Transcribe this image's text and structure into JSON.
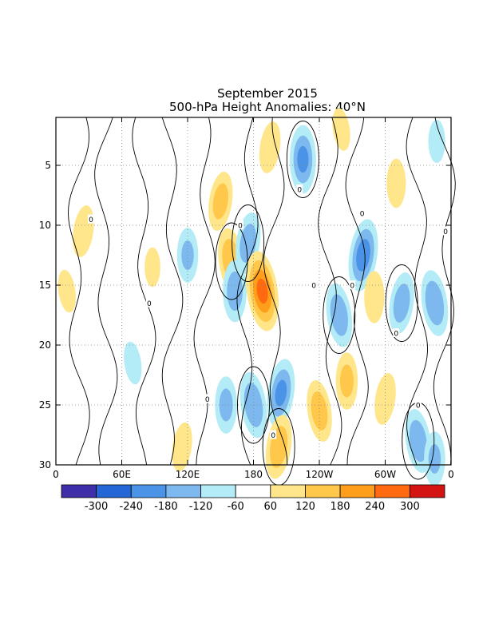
{
  "chart_data": {
    "type": "heatmap",
    "title": "September 2015",
    "subtitle": "500-hPa Height Anomalies: 40°N",
    "x_axis": {
      "range_deg_east": [
        0,
        360
      ],
      "tick_values_deg_east": [
        0,
        60,
        120,
        180,
        240,
        300,
        360
      ],
      "tick_labels": [
        "0",
        "60E",
        "120E",
        "180",
        "120W",
        "60W",
        "0"
      ]
    },
    "y_axis": {
      "range_day": [
        1,
        30
      ],
      "inverted": true,
      "tick_values": [
        5,
        10,
        15,
        20,
        25,
        30
      ],
      "tick_labels": [
        "5",
        "10",
        "15",
        "20",
        "25",
        "30"
      ]
    },
    "grid": "dotted",
    "contour_label": "0",
    "colorbar": {
      "labels": [
        "-300",
        "-240",
        "-180",
        "-120",
        "-60",
        "60",
        "120",
        "180",
        "240",
        "300"
      ],
      "colors": [
        "#3e2ea7",
        "#2566d7",
        "#4a93e6",
        "#7db9ee",
        "#b3ecf6",
        "#ffffff",
        "#ffe68a",
        "#ffc84a",
        "#ff9e1a",
        "#ff6a10",
        "#d41412"
      ]
    },
    "anomaly_centers": [
      {
        "lon": 70,
        "day": 21.5,
        "value": -80
      },
      {
        "lon": 88,
        "day": 13.5,
        "value": 70
      },
      {
        "lon": 25,
        "day": 10.5,
        "value": 110
      },
      {
        "lon": 10,
        "day": 15.5,
        "value": 80
      },
      {
        "lon": 120,
        "day": 12.5,
        "value": -120
      },
      {
        "lon": 150,
        "day": 8,
        "value": 140
      },
      {
        "lon": 160,
        "day": 13,
        "value": 170
      },
      {
        "lon": 163,
        "day": 15.5,
        "value": -150
      },
      {
        "lon": 175,
        "day": 11.5,
        "value": -150
      },
      {
        "lon": 188,
        "day": 15.5,
        "value": 240
      },
      {
        "lon": 225,
        "day": 4.5,
        "value": -180
      },
      {
        "lon": 280,
        "day": 12.5,
        "value": -200
      },
      {
        "lon": 258,
        "day": 17.5,
        "value": -160
      },
      {
        "lon": 290,
        "day": 16,
        "value": 110
      },
      {
        "lon": 315,
        "day": 16.5,
        "value": -150
      },
      {
        "lon": 345,
        "day": 16.5,
        "value": -170
      },
      {
        "lon": 347,
        "day": 3,
        "value": -80
      },
      {
        "lon": 205,
        "day": 24,
        "value": -180
      },
      {
        "lon": 180,
        "day": 25,
        "value": -170
      },
      {
        "lon": 155,
        "day": 25,
        "value": -130
      },
      {
        "lon": 203,
        "day": 28.5,
        "value": 160
      },
      {
        "lon": 240,
        "day": 25.5,
        "value": 150
      },
      {
        "lon": 265,
        "day": 23,
        "value": 130
      },
      {
        "lon": 300,
        "day": 24.5,
        "value": 110
      },
      {
        "lon": 330,
        "day": 28,
        "value": -160
      },
      {
        "lon": 345,
        "day": 29.5,
        "value": -120
      },
      {
        "lon": 115,
        "day": 28.5,
        "value": 100
      },
      {
        "lon": 260,
        "day": 2,
        "value": 80
      },
      {
        "lon": 310,
        "day": 6.5,
        "value": 100
      },
      {
        "lon": 195,
        "day": 3.5,
        "value": 110
      }
    ]
  }
}
